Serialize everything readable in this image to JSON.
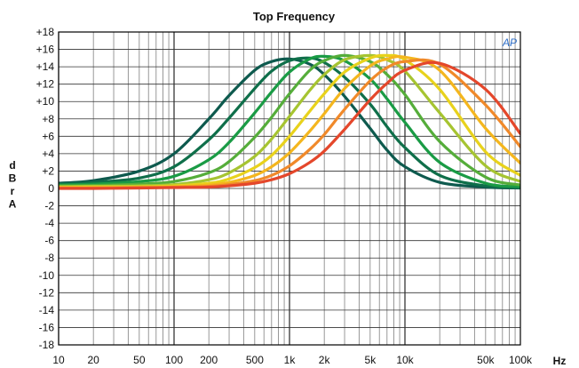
{
  "chart_data": {
    "type": "line",
    "title": "Top Frequency",
    "xlabel": "Hz",
    "ylabel": "dBrA",
    "x_scale": "log",
    "xlim": [
      10,
      100000
    ],
    "ylim": [
      -18,
      18
    ],
    "grid": true,
    "xticks": [
      {
        "v": 10,
        "label": "10"
      },
      {
        "v": 20,
        "label": "20"
      },
      {
        "v": 50,
        "label": "50"
      },
      {
        "v": 100,
        "label": "100"
      },
      {
        "v": 200,
        "label": "200"
      },
      {
        "v": 500,
        "label": "500"
      },
      {
        "v": 1000,
        "label": "1k"
      },
      {
        "v": 2000,
        "label": "2k"
      },
      {
        "v": 5000,
        "label": "5k"
      },
      {
        "v": 10000,
        "label": "10k"
      },
      {
        "v": 50000,
        "label": "50k"
      },
      {
        "v": 100000,
        "label": "100k"
      }
    ],
    "yticks": [
      {
        "v": 18,
        "label": "+18"
      },
      {
        "v": 16,
        "label": "+16"
      },
      {
        "v": 14,
        "label": "+14"
      },
      {
        "v": 12,
        "label": "+12"
      },
      {
        "v": 10,
        "label": "+10"
      },
      {
        "v": 8,
        "label": "+8"
      },
      {
        "v": 6,
        "label": "+6"
      },
      {
        "v": 4,
        "label": "+4"
      },
      {
        "v": 2,
        "label": "+2"
      },
      {
        "v": 0,
        "label": "0"
      },
      {
        "v": -2,
        "label": "-2"
      },
      {
        "v": -4,
        "label": "-4"
      },
      {
        "v": -6,
        "label": "-6"
      },
      {
        "v": -8,
        "label": "-8"
      },
      {
        "v": -10,
        "label": "-10"
      },
      {
        "v": -12,
        "label": "-12"
      },
      {
        "v": -14,
        "label": "-14"
      },
      {
        "v": -16,
        "label": "-16"
      },
      {
        "v": -18,
        "label": "-18"
      }
    ],
    "series": [
      {
        "color": "#0e5a4e",
        "x": [
          10,
          20,
          50,
          100,
          200,
          300,
          500,
          700,
          1000,
          1500,
          2000,
          3000,
          5000,
          7000,
          10000,
          20000,
          50000,
          100000
        ],
        "y": [
          0.6,
          0.9,
          2.0,
          4.0,
          8.0,
          10.7,
          13.6,
          14.6,
          14.9,
          14.3,
          13.1,
          10.6,
          6.9,
          4.4,
          2.5,
          0.7,
          0.15,
          0.05
        ]
      },
      {
        "color": "#0f6f4a",
        "x": [
          10,
          20,
          50,
          100,
          200,
          300,
          500,
          700,
          1000,
          1500,
          2000,
          3000,
          5000,
          7000,
          10000,
          20000,
          50000,
          100000
        ],
        "y": [
          0.5,
          0.7,
          1.2,
          2.5,
          5.6,
          8.1,
          11.5,
          13.5,
          14.7,
          15.0,
          14.5,
          12.8,
          9.7,
          7.1,
          4.7,
          1.5,
          0.3,
          0.1
        ]
      },
      {
        "color": "#1a9b45",
        "x": [
          10,
          20,
          50,
          100,
          200,
          300,
          500,
          700,
          1000,
          1500,
          2000,
          3000,
          5000,
          7000,
          10000,
          20000,
          50000,
          100000
        ],
        "y": [
          0.4,
          0.5,
          0.8,
          1.4,
          3.3,
          5.3,
          8.7,
          11.1,
          13.4,
          14.9,
          15.2,
          14.7,
          12.6,
          10.3,
          7.6,
          3.0,
          0.6,
          0.2
        ]
      },
      {
        "color": "#55ad3a",
        "x": [
          10,
          20,
          50,
          100,
          200,
          300,
          500,
          700,
          1000,
          1500,
          2000,
          3000,
          5000,
          7000,
          10000,
          20000,
          50000,
          100000
        ],
        "y": [
          0.3,
          0.35,
          0.5,
          0.8,
          1.8,
          3.1,
          5.9,
          8.2,
          10.9,
          13.6,
          14.7,
          15.3,
          14.6,
          13.1,
          10.8,
          5.4,
          1.3,
          0.4
        ]
      },
      {
        "color": "#a6c431",
        "x": [
          10,
          20,
          50,
          100,
          200,
          300,
          500,
          700,
          1000,
          1500,
          2000,
          3000,
          5000,
          7000,
          10000,
          20000,
          50000,
          100000
        ],
        "y": [
          0.2,
          0.25,
          0.3,
          0.45,
          1.0,
          1.8,
          3.7,
          5.7,
          8.3,
          11.3,
          13.1,
          14.8,
          15.3,
          14.8,
          13.5,
          8.7,
          2.6,
          0.8
        ]
      },
      {
        "color": "#e8d21c",
        "x": [
          10,
          20,
          50,
          100,
          200,
          300,
          500,
          700,
          1000,
          1500,
          2000,
          3000,
          5000,
          7000,
          10000,
          20000,
          50000,
          100000
        ],
        "y": [
          0.15,
          0.15,
          0.2,
          0.3,
          0.6,
          1.1,
          2.4,
          3.8,
          6.0,
          8.9,
          10.9,
          13.4,
          15.0,
          15.3,
          14.8,
          11.4,
          4.2,
          1.5
        ]
      },
      {
        "color": "#f4b61e",
        "x": [
          10,
          20,
          50,
          100,
          200,
          300,
          500,
          700,
          1000,
          1500,
          2000,
          3000,
          5000,
          7000,
          10000,
          20000,
          50000,
          100000
        ],
        "y": [
          0.1,
          0.1,
          0.15,
          0.2,
          0.4,
          0.7,
          1.5,
          2.5,
          4.1,
          6.6,
          8.6,
          11.5,
          14.1,
          14.9,
          15.1,
          13.6,
          6.9,
          2.9
        ]
      },
      {
        "color": "#f0892a",
        "x": [
          10,
          20,
          50,
          100,
          200,
          300,
          500,
          700,
          1000,
          1500,
          2000,
          3000,
          5000,
          7000,
          10000,
          20000,
          50000,
          100000
        ],
        "y": [
          0.05,
          0.05,
          0.1,
          0.15,
          0.25,
          0.45,
          0.9,
          1.5,
          2.6,
          4.5,
          6.2,
          9.1,
          12.4,
          13.9,
          14.6,
          14.3,
          9.6,
          4.8
        ]
      },
      {
        "color": "#e4472b",
        "x": [
          10,
          20,
          50,
          100,
          200,
          300,
          500,
          700,
          1000,
          1500,
          2000,
          3000,
          5000,
          7000,
          10000,
          20000,
          50000,
          100000
        ],
        "y": [
          0.0,
          0.0,
          0.05,
          0.1,
          0.15,
          0.3,
          0.6,
          1.0,
          1.7,
          3.0,
          4.3,
          6.8,
          10.2,
          12.1,
          13.6,
          14.4,
          11.4,
          6.3
        ]
      }
    ],
    "logo_text": "AP"
  }
}
